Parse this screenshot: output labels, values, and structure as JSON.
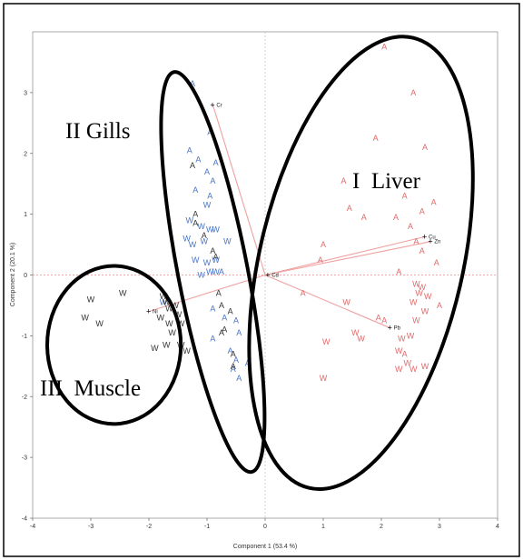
{
  "chart_data": {
    "type": "scatter",
    "title": "",
    "xlabel": "Component 1 (53.4 %)",
    "ylabel": "Component 2 (20.1 %)",
    "xlim": [
      -4,
      4
    ],
    "ylim": [
      -4,
      4
    ],
    "xticks": [
      "-4",
      "-3",
      "-2",
      "-1",
      "0",
      "1",
      "2",
      "3",
      "4"
    ],
    "yticks": [
      "3",
      "2",
      "1",
      "0",
      "-1",
      "-2",
      "-3",
      "-4"
    ],
    "colors": {
      "A_group": "#e0605f",
      "W_group": "#e0605f",
      "gill_blue": "#4a74c4",
      "gill_black": "#333333",
      "vector": "#f0a0a0"
    },
    "vectors": [
      {
        "name": "Cr",
        "x": -0.9,
        "y": 2.8
      },
      {
        "name": "Cu",
        "x": 2.75,
        "y": 0.63
      },
      {
        "name": "Zn",
        "x": 2.85,
        "y": 0.55
      },
      {
        "name": "Pb",
        "x": 2.15,
        "y": -0.87
      },
      {
        "name": "Ni",
        "x": -2.0,
        "y": -0.6
      },
      {
        "name": "Cd",
        "x": 0.05,
        "y": 0.0
      }
    ],
    "points": [
      {
        "label": "A",
        "c": "red",
        "x": 2.05,
        "y": 3.75
      },
      {
        "label": "A",
        "c": "red",
        "x": 2.55,
        "y": 3.0
      },
      {
        "label": "A",
        "c": "red",
        "x": 1.9,
        "y": 2.25
      },
      {
        "label": "A",
        "c": "red",
        "x": 2.75,
        "y": 2.1
      },
      {
        "label": "A",
        "c": "red",
        "x": 1.35,
        "y": 1.55
      },
      {
        "label": "A",
        "c": "red",
        "x": 2.4,
        "y": 1.3
      },
      {
        "label": "A",
        "c": "red",
        "x": 1.45,
        "y": 1.1
      },
      {
        "label": "A",
        "c": "red",
        "x": 2.9,
        "y": 1.2
      },
      {
        "label": "A",
        "c": "red",
        "x": 2.7,
        "y": 1.05
      },
      {
        "label": "A",
        "c": "red",
        "x": 2.25,
        "y": 0.95
      },
      {
        "label": "A",
        "c": "red",
        "x": 2.5,
        "y": 0.8
      },
      {
        "label": "A",
        "c": "red",
        "x": 1.7,
        "y": 0.95
      },
      {
        "label": "A",
        "c": "red",
        "x": 2.6,
        "y": 0.55
      },
      {
        "label": "A",
        "c": "red",
        "x": 2.7,
        "y": 0.4
      },
      {
        "label": "A",
        "c": "red",
        "x": 1.0,
        "y": 0.5
      },
      {
        "label": "A",
        "c": "red",
        "x": 0.95,
        "y": 0.25
      },
      {
        "label": "A",
        "c": "red",
        "x": 2.95,
        "y": 0.2
      },
      {
        "label": "A",
        "c": "red",
        "x": 2.3,
        "y": 0.05
      },
      {
        "label": "A",
        "c": "red",
        "x": 0.65,
        "y": -0.3
      },
      {
        "label": "A",
        "c": "red",
        "x": 3.0,
        "y": -0.5
      },
      {
        "label": "A",
        "c": "red",
        "x": 1.95,
        "y": -0.7
      },
      {
        "label": "A",
        "c": "red",
        "x": 2.05,
        "y": -0.75
      },
      {
        "label": "A",
        "c": "red",
        "x": 2.4,
        "y": -1.3
      },
      {
        "label": "W",
        "c": "red",
        "x": 1.4,
        "y": -0.45
      },
      {
        "label": "W",
        "c": "red",
        "x": 2.6,
        "y": -0.15
      },
      {
        "label": "W",
        "c": "red",
        "x": 2.7,
        "y": -0.2
      },
      {
        "label": "W",
        "c": "red",
        "x": 2.65,
        "y": -0.3
      },
      {
        "label": "W",
        "c": "red",
        "x": 2.8,
        "y": -0.35
      },
      {
        "label": "W",
        "c": "red",
        "x": 2.55,
        "y": -0.45
      },
      {
        "label": "W",
        "c": "red",
        "x": 2.75,
        "y": -0.6
      },
      {
        "label": "W",
        "c": "red",
        "x": 2.6,
        "y": -0.75
      },
      {
        "label": "W",
        "c": "red",
        "x": 1.55,
        "y": -0.95
      },
      {
        "label": "W",
        "c": "red",
        "x": 1.65,
        "y": -1.05
      },
      {
        "label": "W",
        "c": "red",
        "x": 1.05,
        "y": -1.1
      },
      {
        "label": "W",
        "c": "red",
        "x": 2.35,
        "y": -1.05
      },
      {
        "label": "W",
        "c": "red",
        "x": 2.5,
        "y": -1.0
      },
      {
        "label": "W",
        "c": "red",
        "x": 2.3,
        "y": -1.25
      },
      {
        "label": "W",
        "c": "red",
        "x": 2.45,
        "y": -1.45
      },
      {
        "label": "W",
        "c": "red",
        "x": 2.75,
        "y": -1.5
      },
      {
        "label": "W",
        "c": "red",
        "x": 2.55,
        "y": -1.55
      },
      {
        "label": "W",
        "c": "red",
        "x": 2.3,
        "y": -1.55
      },
      {
        "label": "W",
        "c": "red",
        "x": 1.0,
        "y": -1.7
      },
      {
        "label": "A",
        "c": "blue",
        "x": -1.25,
        "y": 3.15
      },
      {
        "label": "A",
        "c": "blue",
        "x": -0.95,
        "y": 2.35
      },
      {
        "label": "A",
        "c": "blue",
        "x": -1.3,
        "y": 2.05
      },
      {
        "label": "A",
        "c": "blue",
        "x": -1.15,
        "y": 1.9
      },
      {
        "label": "A",
        "c": "blue",
        "x": -0.85,
        "y": 1.85
      },
      {
        "label": "A",
        "c": "blue",
        "x": -1.0,
        "y": 1.7
      },
      {
        "label": "A",
        "c": "blue",
        "x": -0.9,
        "y": 1.55
      },
      {
        "label": "A",
        "c": "blue",
        "x": -1.2,
        "y": 1.4
      },
      {
        "label": "W",
        "c": "blue",
        "x": -1.0,
        "y": 1.15
      },
      {
        "label": "A",
        "c": "blue",
        "x": -0.95,
        "y": 1.3
      },
      {
        "label": "W",
        "c": "blue",
        "x": -1.3,
        "y": 0.9
      },
      {
        "label": "W",
        "c": "blue",
        "x": -1.1,
        "y": 0.8
      },
      {
        "label": "W",
        "c": "blue",
        "x": -0.95,
        "y": 0.75
      },
      {
        "label": "W",
        "c": "blue",
        "x": -0.85,
        "y": 0.75
      },
      {
        "label": "W",
        "c": "blue",
        "x": -1.35,
        "y": 0.6
      },
      {
        "label": "W",
        "c": "blue",
        "x": -1.25,
        "y": 0.5
      },
      {
        "label": "W",
        "c": "blue",
        "x": -1.05,
        "y": 0.55
      },
      {
        "label": "W",
        "c": "blue",
        "x": -0.65,
        "y": 0.55
      },
      {
        "label": "W",
        "c": "blue",
        "x": -1.2,
        "y": 0.25
      },
      {
        "label": "W",
        "c": "blue",
        "x": -1.0,
        "y": 0.2
      },
      {
        "label": "W",
        "c": "blue",
        "x": -0.85,
        "y": 0.25
      },
      {
        "label": "W",
        "c": "blue",
        "x": -0.95,
        "y": 0.05
      },
      {
        "label": "W",
        "c": "blue",
        "x": -0.85,
        "y": 0.05
      },
      {
        "label": "W",
        "c": "blue",
        "x": -1.1,
        "y": 0.0
      },
      {
        "label": "A",
        "c": "blue",
        "x": -0.75,
        "y": 0.05
      },
      {
        "label": "W",
        "c": "blue",
        "x": -1.75,
        "y": -0.45
      },
      {
        "label": "A",
        "c": "blue",
        "x": -0.9,
        "y": -0.55
      },
      {
        "label": "A",
        "c": "blue",
        "x": -0.7,
        "y": -0.7
      },
      {
        "label": "A",
        "c": "blue",
        "x": -0.5,
        "y": -0.75
      },
      {
        "label": "A",
        "c": "blue",
        "x": -0.45,
        "y": -0.95
      },
      {
        "label": "A",
        "c": "blue",
        "x": -0.6,
        "y": -1.25
      },
      {
        "label": "A",
        "c": "blue",
        "x": -0.5,
        "y": -1.4
      },
      {
        "label": "A",
        "c": "blue",
        "x": -0.55,
        "y": -1.55
      },
      {
        "label": "A",
        "c": "blue",
        "x": -0.45,
        "y": -1.7
      },
      {
        "label": "A",
        "c": "blue",
        "x": -0.3,
        "y": -1.45
      },
      {
        "label": "A",
        "c": "blue",
        "x": -0.9,
        "y": -1.05
      },
      {
        "label": "A",
        "c": "black",
        "x": -1.25,
        "y": 1.8
      },
      {
        "label": "A",
        "c": "black",
        "x": -1.2,
        "y": 1.0
      },
      {
        "label": "A",
        "c": "black",
        "x": -1.2,
        "y": 0.85
      },
      {
        "label": "A",
        "c": "black",
        "x": -1.05,
        "y": 0.65
      },
      {
        "label": "A",
        "c": "black",
        "x": -0.9,
        "y": 0.4
      },
      {
        "label": "A",
        "c": "black",
        "x": -0.85,
        "y": 0.3
      },
      {
        "label": "A",
        "c": "black",
        "x": -0.8,
        "y": -0.3
      },
      {
        "label": "A",
        "c": "black",
        "x": -0.75,
        "y": -0.5
      },
      {
        "label": "A",
        "c": "black",
        "x": -0.6,
        "y": -0.6
      },
      {
        "label": "A",
        "c": "black",
        "x": -0.7,
        "y": -0.9
      },
      {
        "label": "A",
        "c": "black",
        "x": -0.75,
        "y": -0.95
      },
      {
        "label": "A",
        "c": "black",
        "x": -0.55,
        "y": -1.3
      },
      {
        "label": "A",
        "c": "black",
        "x": -0.55,
        "y": -1.5
      },
      {
        "label": "W",
        "c": "black",
        "x": -3.0,
        "y": -0.4
      },
      {
        "label": "W",
        "c": "black",
        "x": -2.45,
        "y": -0.3
      },
      {
        "label": "W",
        "c": "black",
        "x": -3.1,
        "y": -0.7
      },
      {
        "label": "W",
        "c": "black",
        "x": -2.85,
        "y": -0.8
      },
      {
        "label": "W",
        "c": "black",
        "x": -1.75,
        "y": -0.35
      },
      {
        "label": "W",
        "c": "black",
        "x": -1.7,
        "y": -0.45
      },
      {
        "label": "W",
        "c": "black",
        "x": -1.65,
        "y": -0.55
      },
      {
        "label": "W",
        "c": "black",
        "x": -1.55,
        "y": -0.5
      },
      {
        "label": "W",
        "c": "black",
        "x": -1.8,
        "y": -0.7
      },
      {
        "label": "W",
        "c": "black",
        "x": -1.5,
        "y": -0.65
      },
      {
        "label": "W",
        "c": "black",
        "x": -1.45,
        "y": -0.8
      },
      {
        "label": "W",
        "c": "black",
        "x": -1.65,
        "y": -0.8
      },
      {
        "label": "W",
        "c": "black",
        "x": -1.6,
        "y": -0.95
      },
      {
        "label": "W",
        "c": "black",
        "x": -1.7,
        "y": -1.15
      },
      {
        "label": "W",
        "c": "black",
        "x": -1.45,
        "y": -1.15
      },
      {
        "label": "W",
        "c": "black",
        "x": -1.35,
        "y": -1.25
      },
      {
        "label": "W",
        "c": "black",
        "x": -1.9,
        "y": -1.2
      }
    ],
    "clusters": [
      {
        "name": "I  Liver"
      },
      {
        "name": "II Gills"
      },
      {
        "name": "III  Muscle"
      }
    ]
  }
}
